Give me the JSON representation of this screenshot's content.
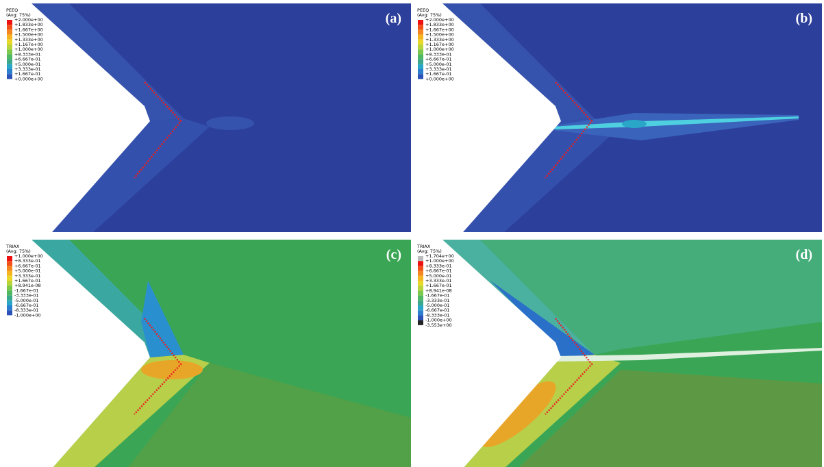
{
  "panels": [
    {
      "label": "(a)",
      "legend": {
        "title": "PEEQ",
        "subtitle": "(Avg: 75%)",
        "entries": [
          "+2.000e+00",
          "+1.833e+00",
          "+1.667e+00",
          "+1.500e+00",
          "+1.333e+00",
          "+1.167e+00",
          "+1.000e+00",
          "+8.333e-01",
          "+6.667e-01",
          "+5.000e-01",
          "+3.333e-01",
          "+1.667e-01",
          "+0.000e+00"
        ]
      }
    },
    {
      "label": "(b)",
      "legend": {
        "title": "PEEQ",
        "subtitle": "(Avg: 75%)",
        "entries": [
          "+2.000e+00",
          "+1.833e+00",
          "+1.667e+00",
          "+1.500e+00",
          "+1.333e+00",
          "+1.167e+00",
          "+1.000e+00",
          "+8.333e-01",
          "+6.667e-01",
          "+5.000e-01",
          "+3.333e-01",
          "+1.667e-01",
          "+0.000e+00"
        ]
      }
    },
    {
      "label": "(c)",
      "legend": {
        "title": "TRIAX",
        "subtitle": "(Avg: 75%)",
        "entries": [
          "+1.000e+00",
          "+8.333e-01",
          "+6.667e-01",
          "+5.000e-01",
          "+3.333e-01",
          "+1.667e-01",
          "+8.941e-08",
          "-1.667e-01",
          "-3.333e-01",
          "-5.000e-01",
          "-6.667e-01",
          "-8.333e-01",
          "-1.000e+00"
        ]
      }
    },
    {
      "label": "(d)",
      "legend": {
        "title": "TRIAX",
        "subtitle": "(Avg: 75%)",
        "entries": [
          "+1.704e+00",
          "+1.000e+00",
          "+8.333e-01",
          "+6.667e-01",
          "+5.000e-01",
          "+3.333e-01",
          "+1.667e-01",
          "+8.941e-08",
          "-1.667e-01",
          "-3.333e-01",
          "-5.000e-01",
          "-6.667e-01",
          "-8.333e-01",
          "-1.000e+00",
          "-3.553e+00"
        ]
      }
    }
  ]
}
